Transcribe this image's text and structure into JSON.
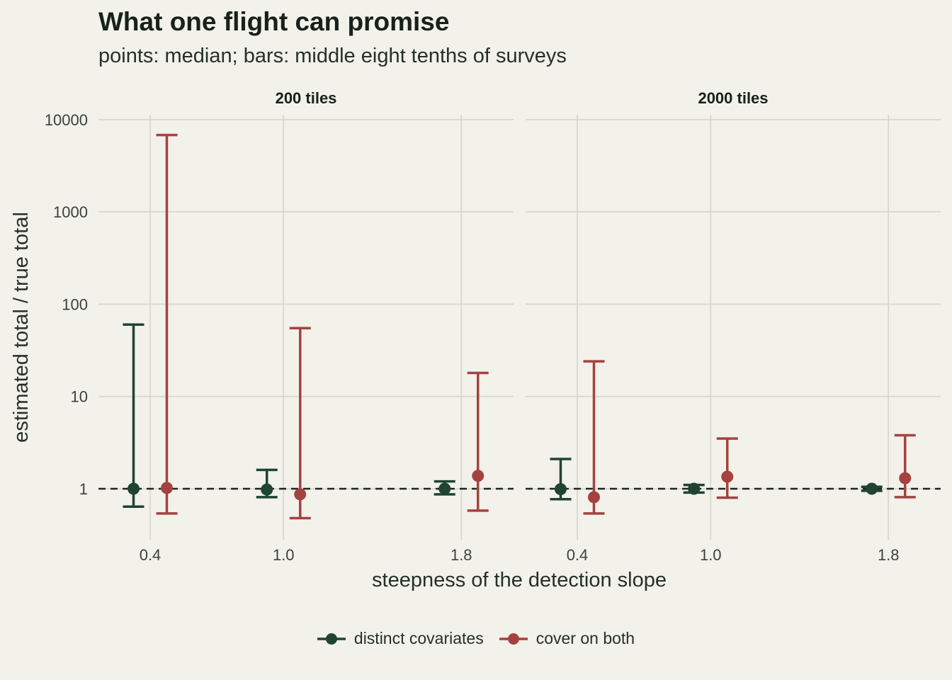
{
  "title": "What one flight can promise",
  "subtitle": "points: median; bars: middle eight tenths of surveys",
  "chart_data": {
    "type": "errorbar",
    "xlabel": "steepness of the detection slope",
    "ylabel": "estimated total / true total",
    "y_scale": "log10",
    "y_ticks": [
      1,
      10,
      100,
      1000,
      10000
    ],
    "y_tick_labels": [
      "1",
      "10",
      "100",
      "1000",
      "10000"
    ],
    "x_ticks": [
      0.4,
      1.0,
      1.8
    ],
    "x_tick_labels": [
      "0.4",
      "1.0",
      "1.8"
    ],
    "reference_line": 1,
    "grid": true,
    "legend_position": "bottom",
    "series_colors": {
      "distinct covariates": "#1f4431",
      "cover on both": "#a5423f"
    },
    "panels": [
      {
        "label": "200 tiles",
        "series": [
          {
            "name": "distinct covariates",
            "x": [
              0.4,
              1.0,
              1.8
            ],
            "median": [
              1.0,
              0.98,
              1.0
            ],
            "low": [
              0.64,
              0.81,
              0.87
            ],
            "high": [
              60,
              1.6,
              1.2
            ]
          },
          {
            "name": "cover on both",
            "x": [
              0.4,
              1.0,
              1.8
            ],
            "median": [
              1.02,
              0.87,
              1.38
            ],
            "low": [
              0.54,
              0.48,
              0.58
            ],
            "high": [
              6800,
              55,
              18
            ]
          }
        ]
      },
      {
        "label": "2000 tiles",
        "series": [
          {
            "name": "distinct covariates",
            "x": [
              0.4,
              1.0,
              1.8
            ],
            "median": [
              0.99,
              1.0,
              1.0
            ],
            "low": [
              0.77,
              0.91,
              0.95
            ],
            "high": [
              2.1,
              1.1,
              1.05
            ]
          },
          {
            "name": "cover on both",
            "x": [
              0.4,
              1.0,
              1.8
            ],
            "median": [
              0.81,
              1.35,
              1.3
            ],
            "low": [
              0.54,
              0.8,
              0.81
            ],
            "high": [
              24,
              3.5,
              3.8
            ]
          }
        ]
      }
    ]
  },
  "legend": {
    "items": [
      {
        "label": "distinct covariates"
      },
      {
        "label": "cover on both"
      }
    ]
  }
}
